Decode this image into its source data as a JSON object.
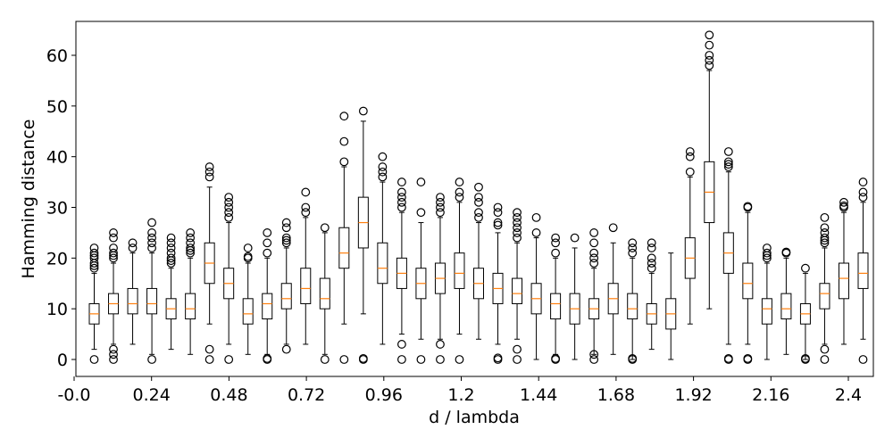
{
  "chart_data": {
    "type": "boxplot",
    "xlabel": "d / lambda",
    "ylabel": "Hamming distance",
    "ylim": [
      -3.2,
      67.2
    ],
    "xlim": [
      0.0,
      2.52
    ],
    "yticks": [
      0,
      10,
      20,
      30,
      40,
      50,
      60
    ],
    "xticks": [
      0.0,
      0.24,
      0.48,
      0.72,
      0.96,
      1.2,
      1.44,
      1.68,
      1.92,
      2.16,
      2.4
    ],
    "xtick_labels": [
      "-0.0",
      "0.24",
      "0.48",
      "0.72",
      "0.96",
      "1.2",
      "1.44",
      "1.68",
      "1.92",
      "2.16",
      "2.4"
    ],
    "grid": false,
    "colors": {
      "box": "#000000",
      "median": "#ff7f0e",
      "flier": "#000000"
    },
    "boxes": [
      {
        "x": 0.04,
        "whislo": 2,
        "q1": 7,
        "med": 9,
        "q3": 11,
        "whishi": 17,
        "fliers": [
          0,
          18,
          18.5,
          19,
          20,
          20.5,
          21,
          22
        ]
      },
      {
        "x": 0.12,
        "whislo": 3,
        "q1": 9,
        "med": 11,
        "q3": 13,
        "whishi": 19,
        "fliers": [
          0,
          1,
          2,
          20,
          20.5,
          21,
          22,
          24,
          25
        ]
      },
      {
        "x": 0.2,
        "whislo": 3,
        "q1": 9,
        "med": 11,
        "q3": 14,
        "whishi": 21,
        "fliers": [
          22,
          23
        ]
      },
      {
        "x": 0.28,
        "whislo": 1,
        "q1": 9,
        "med": 11,
        "q3": 14,
        "whishi": 21,
        "fliers": [
          0,
          22,
          23,
          24,
          25,
          27
        ]
      },
      {
        "x": 0.36,
        "whislo": 2,
        "q1": 8,
        "med": 10,
        "q3": 12,
        "whishi": 18,
        "fliers": [
          19,
          19.5,
          20,
          21,
          22,
          23,
          24
        ]
      },
      {
        "x": 0.44,
        "whislo": 1,
        "q1": 8,
        "med": 10,
        "q3": 13,
        "whishi": 20,
        "fliers": [
          21,
          21.5,
          22,
          23,
          24,
          25
        ]
      },
      {
        "x": 0.52,
        "whislo": 7,
        "q1": 15,
        "med": 19,
        "q3": 23,
        "whishi": 34,
        "fliers": [
          0,
          2,
          36,
          37,
          38
        ]
      },
      {
        "x": 0.6,
        "whislo": 3,
        "q1": 12,
        "med": 15,
        "q3": 18,
        "whishi": 27,
        "fliers": [
          0,
          28,
          29,
          30,
          31,
          32
        ]
      },
      {
        "x": 0.68,
        "whislo": 1,
        "q1": 7,
        "med": 9,
        "q3": 12,
        "whishi": 19,
        "fliers": [
          20,
          20.3,
          22
        ]
      },
      {
        "x": 0.76,
        "whislo": 1,
        "q1": 8,
        "med": 11,
        "q3": 13,
        "whishi": 20,
        "fliers": [
          0,
          0.2,
          21,
          23,
          25
        ]
      },
      {
        "x": 0.84,
        "whislo": 3,
        "q1": 10,
        "med": 12,
        "q3": 15,
        "whishi": 22,
        "fliers": [
          2,
          23,
          23.5,
          24,
          26,
          27
        ]
      },
      {
        "x": 0.92,
        "whislo": 3,
        "q1": 11,
        "med": 14,
        "q3": 18,
        "whishi": 28,
        "fliers": [
          29,
          30,
          33
        ]
      },
      {
        "x": 1.0,
        "whislo": 1,
        "q1": 10,
        "med": 12,
        "q3": 16,
        "whishi": 25,
        "fliers": [
          0,
          26
        ]
      },
      {
        "x": 1.08,
        "whislo": 7,
        "q1": 18,
        "med": 21,
        "q3": 26,
        "whishi": 38,
        "fliers": [
          0,
          39,
          43,
          48
        ]
      },
      {
        "x": 1.16,
        "whislo": 9,
        "q1": 22,
        "med": 27,
        "q3": 32,
        "whishi": 47,
        "fliers": [
          0,
          0.2,
          49
        ]
      },
      {
        "x": 1.24,
        "whislo": 3,
        "q1": 15,
        "med": 18,
        "q3": 23,
        "whishi": 35,
        "fliers": [
          36,
          37,
          38,
          40
        ]
      },
      {
        "x": 1.32,
        "whislo": 5,
        "q1": 14,
        "med": 17,
        "q3": 20,
        "whishi": 29,
        "fliers": [
          0,
          3,
          30,
          31,
          32,
          33,
          35
        ]
      },
      {
        "x": 1.4,
        "whislo": 4,
        "q1": 12,
        "med": 15,
        "q3": 18,
        "whishi": 27,
        "fliers": [
          0,
          29,
          35
        ]
      },
      {
        "x": 1.48,
        "whislo": 4,
        "q1": 13,
        "med": 16,
        "q3": 19,
        "whishi": 28,
        "fliers": [
          0,
          3,
          29,
          30,
          31,
          32
        ]
      },
      {
        "x": 1.56,
        "whislo": 5,
        "q1": 14,
        "med": 17,
        "q3": 21,
        "whishi": 31,
        "fliers": [
          0,
          32,
          33,
          35
        ]
      },
      {
        "x": 1.64,
        "whislo": 4,
        "q1": 12,
        "med": 15,
        "q3": 18,
        "whishi": 27,
        "fliers": [
          28,
          29,
          31,
          32,
          34
        ]
      },
      {
        "x": 1.72,
        "whislo": 3,
        "q1": 11,
        "med": 14,
        "q3": 17,
        "whishi": 25,
        "fliers": [
          0,
          0.3,
          26.5,
          27,
          29,
          30
        ]
      },
      {
        "x": 1.8,
        "whislo": 4,
        "q1": 11,
        "med": 13,
        "q3": 16,
        "whishi": 23,
        "fliers": [
          0,
          2,
          24,
          25,
          26,
          27,
          28,
          29
        ]
      },
      {
        "x": 1.88,
        "whislo": 0,
        "q1": 9,
        "med": 12,
        "q3": 15,
        "whishi": 24,
        "fliers": [
          25,
          28
        ]
      },
      {
        "x": 1.96,
        "whislo": 1,
        "q1": 8,
        "med": 11,
        "q3": 13,
        "whishi": 20,
        "fliers": [
          0,
          0.2,
          21,
          23,
          24
        ]
      },
      {
        "x": 2.04,
        "whislo": 0,
        "q1": 7,
        "med": 10,
        "q3": 13,
        "whishi": 22,
        "fliers": [
          24
        ]
      },
      {
        "x": 2.12,
        "whislo": 1,
        "q1": 8,
        "med": 10,
        "q3": 12,
        "whishi": 18,
        "fliers": [
          0,
          1,
          19,
          20,
          21,
          23,
          25
        ]
      },
      {
        "x": 2.2,
        "whislo": 1,
        "q1": 9,
        "med": 12,
        "q3": 15,
        "whishi": 23,
        "fliers": [
          26
        ]
      },
      {
        "x": 2.28,
        "whislo": 0,
        "q1": 8,
        "med": 10,
        "q3": 13,
        "whishi": 20,
        "fliers": [
          0,
          0.2,
          21,
          22,
          23
        ]
      },
      {
        "x": 2.36,
        "whislo": 2,
        "q1": 7,
        "med": 9,
        "q3": 11,
        "whishi": 17,
        "fliers": [
          18,
          19,
          20,
          22,
          23
        ]
      },
      {
        "x": 2.44,
        "whislo": 0,
        "q1": 6,
        "med": 9,
        "q3": 12,
        "whishi": 21,
        "fliers": []
      },
      {
        "x": 2.52,
        "whislo": 7,
        "q1": 16,
        "med": 20,
        "q3": 24,
        "whishi": 36,
        "fliers": [
          37,
          40,
          41
        ]
      },
      {
        "x": 2.6,
        "whislo": 10,
        "q1": 27,
        "med": 33,
        "q3": 39,
        "whishi": 57,
        "fliers": [
          58,
          59,
          60,
          62,
          64
        ]
      },
      {
        "x": 2.68,
        "whislo": 3,
        "q1": 17,
        "med": 21,
        "q3": 25,
        "whishi": 37,
        "fliers": [
          0,
          0.2,
          38,
          38.5,
          39,
          41
        ]
      },
      {
        "x": 2.76,
        "whislo": 3,
        "q1": 12,
        "med": 15,
        "q3": 19,
        "whishi": 29,
        "fliers": [
          0,
          0.2,
          30,
          30.2
        ]
      },
      {
        "x": 2.84,
        "whislo": 0,
        "q1": 7,
        "med": 10,
        "q3": 12,
        "whishi": 19,
        "fliers": [
          20,
          20.5,
          21,
          22
        ]
      },
      {
        "x": 2.92,
        "whislo": 1,
        "q1": 8,
        "med": 10,
        "q3": 13,
        "whishi": 20,
        "fliers": [
          21,
          21.2
        ]
      },
      {
        "x": 3.0,
        "whislo": 0,
        "q1": 7,
        "med": 9,
        "q3": 11,
        "whishi": 17,
        "fliers": [
          0,
          0.2,
          18
        ]
      },
      {
        "x": 3.08,
        "whislo": 3,
        "q1": 10,
        "med": 13,
        "q3": 15,
        "whishi": 22,
        "fliers": [
          0,
          2,
          23,
          23.5,
          24,
          25,
          26,
          28
        ]
      },
      {
        "x": 3.16,
        "whislo": 3,
        "q1": 12,
        "med": 16,
        "q3": 19,
        "whishi": 29,
        "fliers": [
          30,
          30.3,
          31
        ]
      },
      {
        "x": 3.24,
        "whislo": 4,
        "q1": 14,
        "med": 17,
        "q3": 21,
        "whishi": 31,
        "fliers": [
          0,
          32,
          33,
          35
        ]
      }
    ]
  }
}
